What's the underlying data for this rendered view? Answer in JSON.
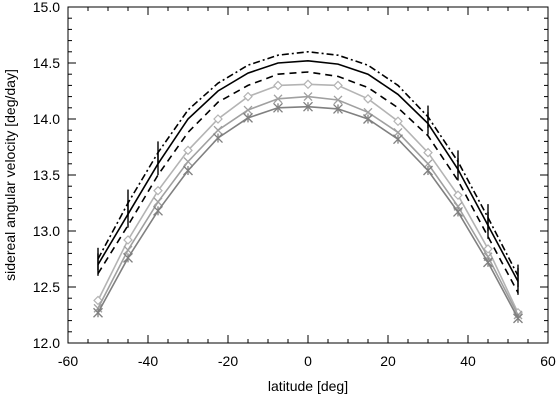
{
  "chart_data": {
    "type": "line",
    "title": "",
    "xlabel": "latitude [deg]",
    "ylabel": "sidereal angular velocity [deg/day]",
    "xlim": [
      -60,
      60
    ],
    "ylim": [
      12.0,
      15.0
    ],
    "xticks": [
      "-60",
      "-40",
      "-20",
      "0",
      "20",
      "40",
      "60"
    ],
    "yticks": [
      "12.0",
      "12.5",
      "13.0",
      "13.5",
      "14.0",
      "14.5",
      "15.0"
    ],
    "grid": false,
    "legend": "none",
    "x": [
      -52.5,
      -45,
      -37.5,
      -30,
      -22.5,
      -15,
      -7.5,
      0,
      7.5,
      15,
      22.5,
      30,
      37.5,
      45,
      52.5
    ],
    "series": [
      {
        "style": "dash-dot",
        "color": "#000000",
        "marker": "none",
        "values": [
          12.75,
          13.25,
          13.7,
          14.08,
          14.32,
          14.48,
          14.57,
          14.6,
          14.57,
          14.48,
          14.3,
          14.02,
          13.62,
          13.12,
          12.6
        ],
        "errors": [
          0.1,
          0.12,
          0.1,
          0.0,
          0.0,
          0.0,
          0.0,
          0.0,
          0.0,
          0.0,
          0.0,
          0.1,
          0.1,
          0.12,
          0.1
        ]
      },
      {
        "style": "solid",
        "color": "#000000",
        "marker": "none",
        "values": [
          12.7,
          13.15,
          13.6,
          14.0,
          14.25,
          14.41,
          14.5,
          14.52,
          14.49,
          14.4,
          14.22,
          13.96,
          13.55,
          13.05,
          12.55
        ],
        "errors": [
          0.1,
          0.12,
          0.1,
          0.0,
          0.0,
          0.0,
          0.0,
          0.0,
          0.0,
          0.0,
          0.0,
          0.1,
          0.1,
          0.12,
          0.12
        ]
      },
      {
        "style": "dashed",
        "color": "#000000",
        "marker": "none",
        "values": [
          12.62,
          13.05,
          13.5,
          13.88,
          14.15,
          14.3,
          14.4,
          14.42,
          14.38,
          14.28,
          14.1,
          13.85,
          13.45,
          12.95,
          12.45
        ],
        "errors": [
          0.0,
          0.0,
          0.0,
          0.0,
          0.0,
          0.0,
          0.0,
          0.0,
          0.0,
          0.0,
          0.0,
          0.0,
          0.0,
          0.0,
          0.0
        ]
      },
      {
        "style": "solid",
        "color": "#b4b4b4",
        "marker": "diamond",
        "values": [
          12.38,
          12.92,
          13.36,
          13.72,
          14.0,
          14.2,
          14.3,
          14.31,
          14.3,
          14.18,
          13.98,
          13.7,
          13.32,
          12.84,
          12.27
        ],
        "errors": [
          0.0,
          0.0,
          0.0,
          0.0,
          0.0,
          0.0,
          0.0,
          0.0,
          0.0,
          0.0,
          0.0,
          0.0,
          0.0,
          0.0,
          0.0
        ]
      },
      {
        "style": "solid",
        "color": "#a0a0a0",
        "marker": "cross",
        "values": [
          12.31,
          12.83,
          13.26,
          13.62,
          13.9,
          14.08,
          14.18,
          14.2,
          14.17,
          14.06,
          13.88,
          13.6,
          13.22,
          12.77,
          12.25
        ],
        "errors": [
          0.0,
          0.0,
          0.0,
          0.0,
          0.0,
          0.0,
          0.0,
          0.0,
          0.0,
          0.0,
          0.0,
          0.0,
          0.0,
          0.0,
          0.0
        ]
      },
      {
        "style": "solid",
        "color": "#808080",
        "marker": "asterisk",
        "values": [
          12.27,
          12.76,
          13.18,
          13.54,
          13.83,
          14.01,
          14.1,
          14.11,
          14.09,
          14.0,
          13.82,
          13.54,
          13.17,
          12.72,
          12.22
        ],
        "errors": [
          0.0,
          0.0,
          0.0,
          0.0,
          0.0,
          0.0,
          0.0,
          0.0,
          0.0,
          0.0,
          0.0,
          0.0,
          0.0,
          0.0,
          0.0
        ]
      }
    ]
  }
}
